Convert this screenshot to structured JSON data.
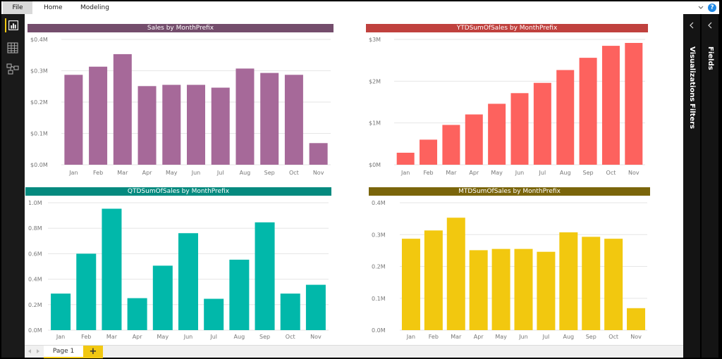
{
  "ribbon": {
    "tabs": [
      {
        "label": "File"
      },
      {
        "label": "Home"
      },
      {
        "label": "Modeling"
      }
    ],
    "help_label": "?"
  },
  "left_nav": {
    "icons": [
      "report-view-icon",
      "data-view-icon",
      "relationships-view-icon"
    ]
  },
  "right_pane": {
    "visualizations_label": "Visualizations",
    "filters_label": "Filters",
    "fields_label": "Fields"
  },
  "bottom_bar": {
    "page_label": "Page 1",
    "add_label": "+"
  },
  "colors": {
    "accent": "#f2c811",
    "series1_bar": "#a66999",
    "series1_title": "#744d6c",
    "series2_bar": "#fd625e",
    "series2_title": "#c0413e",
    "series3_bar": "#01b8aa",
    "series3_title": "#058a7f",
    "series4_bar": "#f2c80f",
    "series4_title": "#7a650b"
  },
  "chart_data": [
    {
      "type": "bar",
      "title": "Sales by MonthPrefix",
      "categories": [
        "Jan",
        "Feb",
        "Mar",
        "Apr",
        "May",
        "Jun",
        "Jul",
        "Aug",
        "Sep",
        "Oct",
        "Nov"
      ],
      "values": [
        0.287,
        0.313,
        0.353,
        0.251,
        0.255,
        0.255,
        0.246,
        0.307,
        0.293,
        0.287,
        0.069
      ],
      "value_unit": "$M",
      "yticks": [
        "$0.0M",
        "$0.1M",
        "$0.2M",
        "$0.3M",
        "$0.4M"
      ],
      "ylim": [
        0,
        0.4
      ],
      "grid": true,
      "bar_color": "#a66999",
      "title_color": "#744d6c"
    },
    {
      "type": "bar",
      "title": "YTDSumOfSales by MonthPrefix",
      "categories": [
        "Jan",
        "Feb",
        "Mar",
        "Apr",
        "May",
        "Jun",
        "Jul",
        "Aug",
        "Sep",
        "Oct",
        "Nov"
      ],
      "values": [
        0.287,
        0.6,
        0.953,
        1.204,
        1.459,
        1.714,
        1.96,
        2.267,
        2.56,
        2.847,
        2.916
      ],
      "value_unit": "$M",
      "yticks": [
        "$0M",
        "$1M",
        "$2M",
        "$3M"
      ],
      "ylim": [
        0,
        3
      ],
      "grid": true,
      "bar_color": "#fd625e",
      "title_color": "#c0413e"
    },
    {
      "type": "bar",
      "title": "QTDSumOfSales by MonthPrefix",
      "categories": [
        "Jan",
        "Feb",
        "Mar",
        "Apr",
        "May",
        "Jun",
        "Jul",
        "Aug",
        "Sep",
        "Oct",
        "Nov"
      ],
      "values": [
        0.287,
        0.6,
        0.953,
        0.251,
        0.506,
        0.761,
        0.246,
        0.553,
        0.846,
        0.287,
        0.356
      ],
      "value_unit": "M",
      "yticks": [
        "0.0M",
        "0.2M",
        "0.4M",
        "0.6M",
        "0.8M",
        "1.0M"
      ],
      "ylim": [
        0,
        1.0
      ],
      "grid": true,
      "bar_color": "#01b8aa",
      "title_color": "#058a7f"
    },
    {
      "type": "bar",
      "title": "MTDSumOfSales by MonthPrefix",
      "categories": [
        "Jan",
        "Feb",
        "Mar",
        "Apr",
        "May",
        "Jun",
        "Jul",
        "Aug",
        "Sep",
        "Oct",
        "Nov"
      ],
      "values": [
        0.287,
        0.313,
        0.353,
        0.251,
        0.255,
        0.255,
        0.246,
        0.307,
        0.293,
        0.287,
        0.069
      ],
      "value_unit": "M",
      "yticks": [
        "0.0M",
        "0.1M",
        "0.2M",
        "0.3M",
        "0.4M"
      ],
      "ylim": [
        0,
        0.4
      ],
      "grid": true,
      "bar_color": "#f2c80f",
      "title_color": "#7a650b"
    }
  ]
}
